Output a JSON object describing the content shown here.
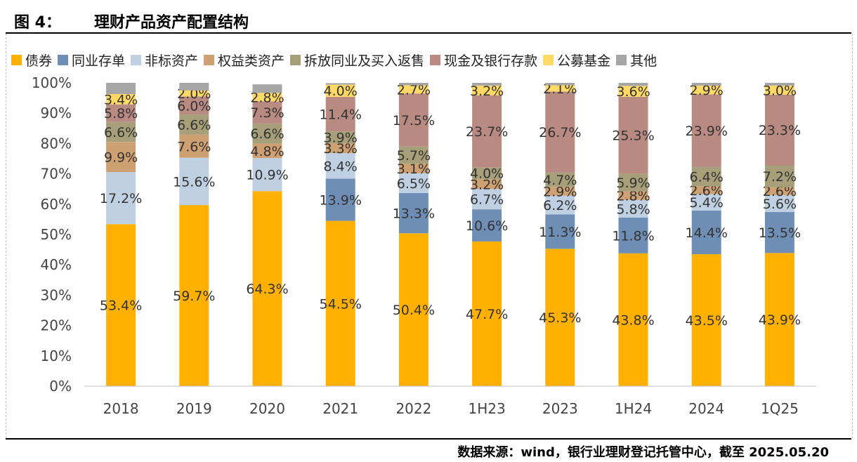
{
  "header": {
    "figure_number": "图 4：",
    "title": "理财产品资产配置结构"
  },
  "source": "数据来源：wind，银行业理财登记托管中心，截至 2025.05.20",
  "chart_data": {
    "type": "bar",
    "stacked": true,
    "percent": true,
    "categories": [
      "2018",
      "2019",
      "2020",
      "2021",
      "2022",
      "1H23",
      "2023",
      "1H24",
      "2024",
      "1Q25"
    ],
    "ylim": [
      0,
      100
    ],
    "yticks": [
      "0%",
      "10%",
      "20%",
      "30%",
      "40%",
      "50%",
      "60%",
      "70%",
      "80%",
      "90%",
      "100%"
    ],
    "legend_position": "top",
    "grid": false,
    "series": [
      {
        "name": "债券",
        "color": "#FFB000",
        "values": [
          53.4,
          59.7,
          64.3,
          54.5,
          50.4,
          47.7,
          45.3,
          43.8,
          43.5,
          43.9
        ],
        "labels": [
          "53.4%",
          "59.7%",
          "64.3%",
          "54.5%",
          "50.4%",
          "47.7%",
          "45.3%",
          "43.8%",
          "43.5%",
          "43.9%"
        ]
      },
      {
        "name": "同业存单",
        "color": "#6E8EB5",
        "values": [
          0,
          0,
          0,
          13.9,
          13.3,
          10.6,
          11.3,
          11.8,
          14.4,
          13.5
        ],
        "labels": [
          "",
          "",
          "",
          "13.9%",
          "13.3%",
          "10.6%",
          "11.3%",
          "11.8%",
          "14.4%",
          "13.5%"
        ]
      },
      {
        "name": "非标资产",
        "color": "#BFD0E2",
        "values": [
          17.2,
          15.6,
          10.9,
          8.4,
          6.5,
          6.7,
          6.2,
          5.8,
          5.4,
          5.6
        ],
        "labels": [
          "17.2%",
          "15.6%",
          "10.9%",
          "8.4%",
          "6.5%",
          "6.7%",
          "6.2%",
          "5.8%",
          "5.4%",
          "5.6%"
        ]
      },
      {
        "name": "权益类资产",
        "color": "#CFA072",
        "values": [
          9.9,
          7.6,
          4.8,
          3.3,
          3.1,
          3.2,
          2.9,
          2.8,
          2.6,
          2.6
        ],
        "labels": [
          "9.9%",
          "7.6%",
          "4.8%",
          "3.3%",
          "3.1%",
          "3.2%",
          "2.9%",
          "2.8%",
          "2.6%",
          "2.6%"
        ]
      },
      {
        "name": "拆放同业及买入返售",
        "color": "#A69F7A",
        "values": [
          6.6,
          6.6,
          6.6,
          3.9,
          5.7,
          4.0,
          4.7,
          5.9,
          6.4,
          7.2
        ],
        "labels": [
          "6.6%",
          "6.6%",
          "6.6%",
          "3.9%",
          "5.7%",
          "4.0%",
          "4.7%",
          "5.9%",
          "6.4%",
          "7.2%"
        ]
      },
      {
        "name": "现金及银行存款",
        "color": "#B98A82",
        "values": [
          5.8,
          6.0,
          7.3,
          11.4,
          17.5,
          23.7,
          26.7,
          25.3,
          23.9,
          23.3
        ],
        "labels": [
          "5.8%",
          "6.0%",
          "7.3%",
          "11.4%",
          "17.5%",
          "23.7%",
          "26.7%",
          "25.3%",
          "23.9%",
          "23.3%"
        ]
      },
      {
        "name": "公募基金",
        "color": "#FFD966",
        "values": [
          3.4,
          2.0,
          2.8,
          4.0,
          2.7,
          3.2,
          2.1,
          3.6,
          2.9,
          3.0
        ],
        "labels": [
          "3.4%",
          "2.0%",
          "2.8%",
          "4.0%",
          "2.7%",
          "3.2%",
          "2.1%",
          "3.6%",
          "2.9%",
          "3.0%"
        ]
      },
      {
        "name": "其他",
        "color": "#A6A6A6",
        "values": [
          3.7,
          2.5,
          2.8,
          0.5,
          0.8,
          0.9,
          0.8,
          1.0,
          0.9,
          0.9
        ],
        "labels": [
          "",
          "",
          "",
          "",
          "",
          "",
          "",
          "",
          "",
          ""
        ]
      }
    ]
  }
}
